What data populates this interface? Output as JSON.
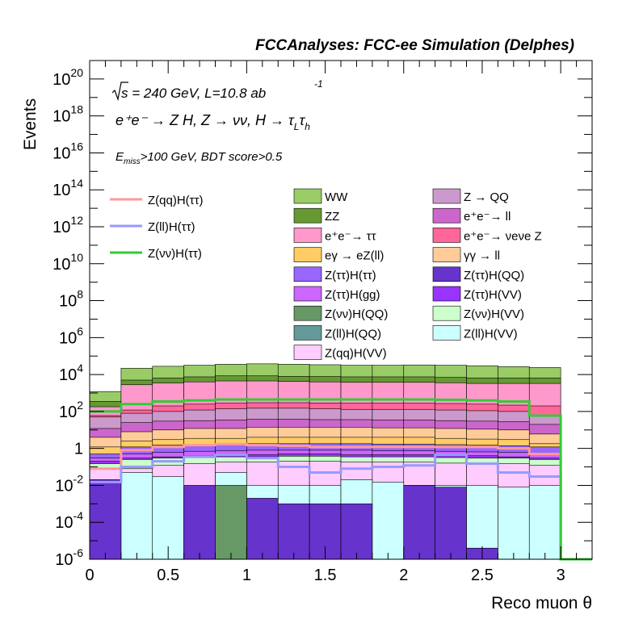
{
  "chart_data": {
    "type": "stacked-histogram",
    "title": "FCCAnalyses: FCC-ee Simulation (Delphes)",
    "xlabel": "Reco muon θ",
    "ylabel": "Events",
    "yscale": "log",
    "xlim": [
      0,
      3.2
    ],
    "ylim": [
      1e-06,
      1e+21
    ],
    "legend_position": "top-right",
    "bin_edges": [
      0,
      0.2,
      0.4,
      0.6,
      0.8,
      1.0,
      1.2,
      1.4,
      1.6,
      1.8,
      2.0,
      2.2,
      2.4,
      2.6,
      2.8,
      3.0,
      3.2
    ],
    "x_ticks": [
      {
        "v": 0,
        "label": "0"
      },
      {
        "v": 0.5,
        "label": "0.5"
      },
      {
        "v": 1,
        "label": "1"
      },
      {
        "v": 1.5,
        "label": "1.5"
      },
      {
        "v": 2,
        "label": "2"
      },
      {
        "v": 2.5,
        "label": "2.5"
      },
      {
        "v": 3,
        "label": "3"
      }
    ],
    "y_ticks": [
      {
        "exp": -6,
        "base": "10",
        "sup": "-6"
      },
      {
        "exp": -4,
        "base": "10",
        "sup": "-4"
      },
      {
        "exp": -2,
        "base": "10",
        "sup": "-2"
      },
      {
        "exp": 0,
        "base": "1",
        "sup": ""
      },
      {
        "exp": 2,
        "base": "10",
        "sup": "2"
      },
      {
        "exp": 4,
        "base": "10",
        "sup": "4"
      },
      {
        "exp": 6,
        "base": "10",
        "sup": "6"
      },
      {
        "exp": 8,
        "base": "10",
        "sup": "8"
      },
      {
        "exp": 10,
        "base": "10",
        "sup": "10"
      },
      {
        "exp": 12,
        "base": "10",
        "sup": "12"
      },
      {
        "exp": 14,
        "base": "10",
        "sup": "14"
      },
      {
        "exp": 16,
        "base": "10",
        "sup": "16"
      },
      {
        "exp": 18,
        "base": "10",
        "sup": "18"
      },
      {
        "exp": 20,
        "base": "10",
        "sup": "20"
      }
    ],
    "stack_order_top_down": [
      "WW",
      "ZZ",
      "e+e- → ττ",
      "e+e- → νeνe Z",
      "Z → QQ",
      "e+e- → ll",
      "γγ → ll",
      "eγ → eZ(ll)",
      "Z(ττ)H(ττ)",
      "Z(ττ)H(gg)",
      "Z(ττ)H(VV)",
      "Z(νν)H(VV)",
      "Z(qq)H(VV)",
      "Z(ll)H(VV)",
      "Z(ττ)H(QQ)",
      "Z(νν)H(QQ)",
      "Z(ll)H(QQ)"
    ],
    "stack_cumulative_tops": [
      {
        "name": "WW",
        "color": "#99cc66",
        "values": [
          1200,
          22000,
          28000,
          32000,
          36000,
          38000,
          36000,
          34000,
          32000,
          32000,
          33000,
          32000,
          30000,
          27000,
          24000,
          0
        ]
      },
      {
        "name": "ZZ",
        "color": "#669933",
        "values": [
          350,
          5000,
          6500,
          7500,
          8500,
          8500,
          8000,
          7800,
          7500,
          7500,
          7500,
          7000,
          6500,
          6500,
          6500,
          0
        ]
      },
      {
        "name": "e+e- → ττ",
        "color": "#ff99cc",
        "values": [
          180,
          2800,
          3500,
          4000,
          4500,
          4500,
          4200,
          4000,
          3800,
          3800,
          3800,
          3600,
          3300,
          3300,
          3300,
          0
        ]
      },
      {
        "name": "e+e- → νeνe Z",
        "color": "#ff6699",
        "values": [
          60,
          120,
          200,
          250,
          280,
          300,
          300,
          290,
          280,
          280,
          280,
          270,
          250,
          220,
          200,
          0
        ]
      },
      {
        "name": "Z → QQ",
        "color": "#cc99cc",
        "values": [
          50,
          80,
          100,
          120,
          140,
          150,
          150,
          140,
          130,
          130,
          130,
          120,
          110,
          100,
          60,
          0
        ]
      },
      {
        "name": "e+e- → ll",
        "color": "#cc66cc",
        "values": [
          12,
          25,
          30,
          32,
          35,
          38,
          38,
          36,
          36,
          35,
          35,
          32,
          30,
          28,
          20,
          0
        ]
      },
      {
        "name": "γγ → ll",
        "color": "#ffcc99",
        "values": [
          4,
          8,
          10,
          12,
          12,
          14,
          14,
          14,
          14,
          13,
          13,
          12,
          11,
          10,
          6,
          0
        ]
      },
      {
        "name": "eγ → eZ(ll)",
        "color": "#ffcc66",
        "values": [
          1.2,
          2.5,
          3,
          3.5,
          3.5,
          4,
          4,
          4,
          4,
          4,
          4,
          3.5,
          3.2,
          3,
          1.8,
          0
        ]
      },
      {
        "name": "Z(ττ)H(ττ)",
        "color": "#9966ff",
        "values": [
          0.5,
          1.2,
          1.5,
          1.6,
          1.7,
          1.8,
          1.8,
          1.8,
          1.8,
          1.7,
          1.7,
          1.6,
          1.5,
          1.4,
          1.2,
          0
        ]
      },
      {
        "name": "Z(ττ)H(gg)",
        "color": "#cc66ff",
        "values": [
          0.3,
          0.5,
          0.6,
          0.7,
          0.75,
          0.8,
          0.8,
          0.8,
          0.8,
          0.75,
          0.75,
          0.7,
          0.65,
          0.6,
          0.5,
          0
        ]
      },
      {
        "name": "Z(ττ)H(VV)",
        "color": "#9933ff",
        "values": [
          0.2,
          0.3,
          0.35,
          0.4,
          0.45,
          0.45,
          0.5,
          0.5,
          0.45,
          0.45,
          0.45,
          0.4,
          0.4,
          0.35,
          0.3,
          0
        ]
      },
      {
        "name": "Z(νν)H(VV)",
        "color": "#ccffcc",
        "values": [
          0.15,
          0.25,
          0.3,
          0.32,
          0.35,
          0.35,
          0.38,
          0.38,
          0.35,
          0.35,
          0.35,
          0.32,
          0.3,
          0.3,
          0.25,
          0
        ]
      },
      {
        "name": "Z(qq)H(VV)",
        "color": "#ffccff",
        "values": [
          0.08,
          0.08,
          0.12,
          0.15,
          0.18,
          0.18,
          0.2,
          0.2,
          0.18,
          0.18,
          0.18,
          0.16,
          0.15,
          0.15,
          0.12,
          0
        ]
      },
      {
        "name": "Z(ll)H(VV)",
        "color": "#ccffff",
        "values": [
          0.02,
          0.05,
          0.03,
          0.008,
          0.05,
          0.01,
          0.01,
          0.01,
          0.02,
          0.015,
          0.01,
          0.01,
          0.01,
          0.008,
          0.01,
          0
        ]
      },
      {
        "name": "Z(ττ)H(QQ)",
        "color": "#6633cc",
        "values": [
          0.02,
          1e-06,
          3e-07,
          0.01,
          5e-08,
          0.002,
          0.001,
          0.001,
          0.001,
          5e-08,
          0.01,
          0.008,
          4e-06,
          5e-08,
          5e-08,
          0
        ]
      },
      {
        "name": "Z(νν)H(QQ)",
        "color": "#669966",
        "values": [
          5e-08,
          5e-08,
          5e-08,
          5e-08,
          0.01,
          5e-08,
          5e-08,
          5e-08,
          5e-08,
          5e-08,
          5e-08,
          5e-08,
          5e-08,
          5e-08,
          5e-08,
          0
        ]
      },
      {
        "name": "Z(ll)H(QQ)",
        "color": "#669999",
        "values": [
          5e-08,
          5e-08,
          5e-08,
          5e-08,
          5e-08,
          5e-08,
          5e-08,
          5e-08,
          5e-08,
          5e-08,
          5e-08,
          5e-08,
          5e-08,
          5e-08,
          5e-08,
          0
        ]
      }
    ],
    "signal_lines": [
      {
        "name": "Z(qq)H(ττ)",
        "color": "#ff9999",
        "values": [
          0.08,
          0.8,
          1.2,
          1.5,
          1.7,
          1.5,
          1.4,
          1.2,
          1.2,
          1.2,
          1.2,
          1.2,
          1.2,
          1.0,
          0.5,
          5e-07
        ]
      },
      {
        "name": "Z(ll)H(ττ)",
        "color": "#9999ff",
        "values": [
          0.015,
          0.1,
          0.2,
          0.35,
          0.45,
          0.3,
          0.1,
          0.05,
          0.08,
          0.1,
          0.12,
          0.45,
          0.15,
          0.05,
          0.03,
          5e-07
        ]
      },
      {
        "name": "Z(νν)H(ττ)",
        "color": "#33cc33",
        "values": [
          100,
          250,
          350,
          400,
          450,
          450,
          450,
          450,
          450,
          450,
          450,
          430,
          400,
          350,
          60,
          5e-07
        ]
      }
    ],
    "annotations": {
      "energy_pre": "s",
      "energy_post": " = 240 GeV, L=10.8 ab",
      "energy_sup": "-1",
      "process": "e⁺e⁻ → Z H, Z → νν, H → τ",
      "process_sub1": "L",
      "process_tau2": "τ",
      "process_sub2": "h",
      "cut_pre": "E",
      "cut_sub": "miss",
      "cut_post": ">100 GeV, BDT score>0.5"
    },
    "legend_lines": [
      "Z(qq)H(ττ)",
      "Z(ll)H(ττ)",
      "Z(νν)H(ττ)"
    ],
    "legend_fill_col1": [
      {
        "label": "WW",
        "color": "#99cc66"
      },
      {
        "label": "ZZ",
        "color": "#669933"
      },
      {
        "label": "e⁺e⁻→ ττ",
        "color": "#ff99cc"
      },
      {
        "label": "eγ → eZ(ll)",
        "color": "#ffcc66"
      },
      {
        "label": "Z(ττ)H(ττ)",
        "color": "#9966ff"
      },
      {
        "label": "Z(ττ)H(gg)",
        "color": "#cc66ff"
      },
      {
        "label": "Z(νν)H(QQ)",
        "color": "#669966"
      },
      {
        "label": "Z(ll)H(QQ)",
        "color": "#669999"
      },
      {
        "label": "Z(qq)H(VV)",
        "color": "#ffccff"
      }
    ],
    "legend_fill_col2": [
      {
        "label": "Z → QQ",
        "color": "#cc99cc"
      },
      {
        "label": "e⁺e⁻→ ll",
        "color": "#cc66cc"
      },
      {
        "label": "e⁺e⁻→ νeνe Z",
        "color": "#ff6699"
      },
      {
        "label": "γγ → ll",
        "color": "#ffcc99"
      },
      {
        "label": "Z(ττ)H(QQ)",
        "color": "#6633cc"
      },
      {
        "label": "Z(ττ)H(VV)",
        "color": "#9933ff"
      },
      {
        "label": "Z(νν)H(VV)",
        "color": "#ccffcc"
      },
      {
        "label": "Z(ll)H(VV)",
        "color": "#ccffff"
      }
    ]
  }
}
